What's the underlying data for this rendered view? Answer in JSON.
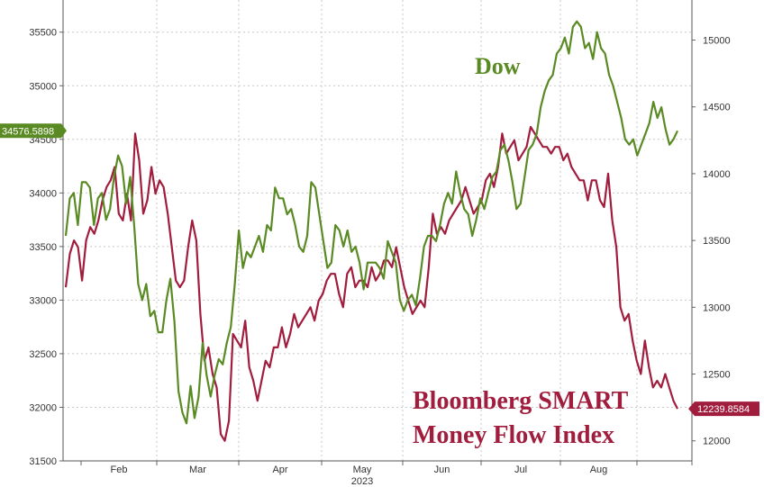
{
  "chart_data": {
    "type": "line",
    "x_labels": [
      "Feb",
      "Mar",
      "Apr",
      "May",
      "Jun",
      "Jul",
      "Aug"
    ],
    "x_year_label": "2023",
    "y_left": {
      "min": 31500,
      "max": 35800,
      "ticks": [
        "31500",
        "32000",
        "32500",
        "33000",
        "33500",
        "34000",
        "34500",
        "35000",
        "35500"
      ]
    },
    "y_right": {
      "min": 11850,
      "max": 15300,
      "ticks": [
        "12000",
        "12500",
        "13000",
        "13500",
        "14000",
        "14500",
        "15000"
      ]
    },
    "grid": true,
    "series": [
      {
        "name": "Dow",
        "axis": "left",
        "color": "#5a8a23",
        "last_value": "34576.5898",
        "values": [
          33600,
          33950,
          34000,
          33700,
          34100,
          34100,
          34050,
          33700,
          33950,
          34000,
          33750,
          33850,
          34150,
          34350,
          34250,
          33900,
          34150,
          33700,
          33150,
          33000,
          33150,
          32850,
          32900,
          32700,
          32700,
          33000,
          33200,
          32800,
          32150,
          31950,
          31850,
          32200,
          31900,
          32100,
          32600,
          32300,
          32100,
          32300,
          32450,
          32400,
          32600,
          32750,
          33150,
          33650,
          33300,
          33450,
          33400,
          33500,
          33600,
          33450,
          33700,
          33650,
          34050,
          33950,
          33950,
          33800,
          33850,
          33700,
          33500,
          33450,
          33600,
          34100,
          34050,
          33800,
          33550,
          33300,
          33350,
          33700,
          33650,
          33500,
          33650,
          33450,
          33500,
          33350,
          33100,
          33350,
          33350,
          33350,
          33300,
          33200,
          33550,
          33450,
          33350,
          33000,
          32900,
          33000,
          33050,
          32950,
          33200,
          33500,
          33600,
          33600,
          33550,
          33700,
          33900,
          34000,
          33900,
          34200,
          34000,
          33850,
          33800,
          33600,
          33750,
          33950,
          33850,
          34000,
          34150,
          34200,
          34400,
          34450,
          34300,
          34100,
          33850,
          33900,
          34150,
          34400,
          34450,
          34550,
          34800,
          34950,
          35050,
          35100,
          35300,
          35350,
          35450,
          35300,
          35550,
          35600,
          35550,
          35350,
          35400,
          35250,
          35500,
          35350,
          35300,
          35100,
          35000,
          34850,
          34700,
          34500,
          34450,
          34500,
          34350,
          34450,
          34550,
          34650,
          34850,
          34700,
          34800,
          34600,
          34450,
          34500,
          34580
        ]
      },
      {
        "name": "Bloomberg SMART Money Flow Index",
        "axis": "right",
        "color": "#a11d3d",
        "last_value": "12239.8584",
        "values": [
          13150,
          13400,
          13500,
          13450,
          13200,
          13500,
          13600,
          13550,
          13650,
          13800,
          13900,
          13950,
          14050,
          13700,
          13650,
          13850,
          13650,
          14300,
          14100,
          13700,
          13800,
          14050,
          13850,
          13950,
          13900,
          13700,
          13450,
          13200,
          13150,
          13200,
          13450,
          13650,
          13500,
          12950,
          12600,
          12700,
          12500,
          12400,
          12050,
          12000,
          12150,
          12800,
          12750,
          12700,
          12900,
          12550,
          12450,
          12300,
          12450,
          12600,
          12550,
          12700,
          12700,
          12850,
          12700,
          12800,
          12950,
          12850,
          12900,
          12950,
          13000,
          12900,
          13050,
          13100,
          13200,
          13250,
          13250,
          13100,
          13000,
          13250,
          13300,
          13150,
          13200,
          13200,
          13150,
          13300,
          13200,
          13250,
          13350,
          13350,
          13300,
          13450,
          13300,
          13150,
          13050,
          12950,
          13000,
          13050,
          13000,
          13300,
          13700,
          13550,
          13600,
          13550,
          13650,
          13700,
          13750,
          13800,
          13900,
          13800,
          13700,
          13750,
          13800,
          13950,
          14000,
          13900,
          14050,
          14300,
          14150,
          14200,
          14250,
          14100,
          14150,
          14200,
          14350,
          14300,
          14250,
          14200,
          14200,
          14150,
          14200,
          14200,
          14100,
          14150,
          14050,
          14000,
          13950,
          13950,
          13800,
          13950,
          13950,
          13800,
          13750,
          14000,
          13650,
          13450,
          13000,
          12900,
          12950,
          12750,
          12600,
          12500,
          12750,
          12550,
          12400,
          12450,
          12400,
          12500,
          12400,
          12300,
          12240
        ]
      }
    ],
    "annotations": {
      "dow_label": "Dow",
      "smart_label_line1": "Bloomberg SMART",
      "smart_label_line2": "Money Flow Index"
    }
  }
}
